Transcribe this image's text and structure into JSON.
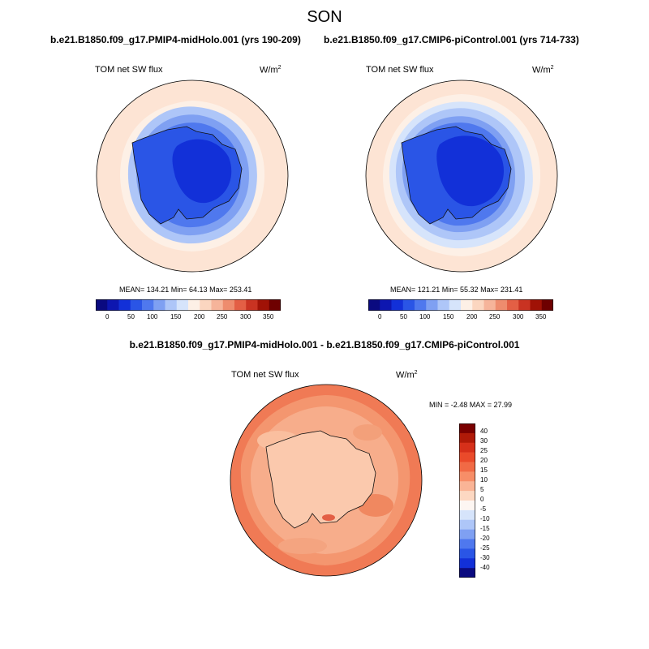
{
  "figure": {
    "title": "SON",
    "left_case": "b.e21.B1850.f09_g17.PMIP4-midHolo.001 (yrs 190-209)",
    "right_case": "b.e21.B1850.f09_g17.CMIP6-piControl.001 (yrs 714-733)",
    "diff_title": "b.e21.B1850.f09_g17.PMIP4-midHolo.001 - b.e21.B1850.f09_g17.CMIP6-piControl.001"
  },
  "panels": {
    "left": {
      "variable": "TOM net SW flux",
      "units_base": "W/m",
      "units_exp": "2",
      "stats": "MEAN= 134.21  Min=  64.13  Max= 253.41"
    },
    "right": {
      "variable": "TOM net SW flux",
      "units_base": "W/m",
      "units_exp": "2",
      "stats": "MEAN= 121.21  Min=  55.32  Max= 231.41"
    },
    "diff": {
      "variable": "TOM net SW flux",
      "units_base": "W/m",
      "units_exp": "2",
      "stats": "MIN =  -2.48 MAX =  27.99"
    }
  },
  "colorbars": {
    "abs_ticks": [
      "0",
      "50",
      "100",
      "150",
      "200",
      "250",
      "300",
      "350"
    ],
    "abs_colors": [
      "#0a0a80",
      "#0d16b0",
      "#1230d8",
      "#2a55e6",
      "#4f78ee",
      "#7fa0f2",
      "#aec6f8",
      "#d6e4fb",
      "#fdf0e6",
      "#fbd6c0",
      "#f6b49a",
      "#ee8c6e",
      "#e35f45",
      "#c93322",
      "#a01206",
      "#6e0000"
    ],
    "diff_labels": [
      "40",
      "30",
      "25",
      "20",
      "15",
      "10",
      "5",
      "0",
      "-5",
      "-10",
      "-15",
      "-20",
      "-25",
      "-30",
      "-40"
    ],
    "diff_colors": [
      "#7a0000",
      "#b01a08",
      "#d6301a",
      "#ea4a2a",
      "#f16a45",
      "#f78e68",
      "#fab496",
      "#fdd8c2",
      "#fdf6f2",
      "#d6e4fb",
      "#aec6f8",
      "#7fa0f2",
      "#4f78ee",
      "#2a55e6",
      "#1230d8",
      "#0a0a80"
    ]
  }
}
